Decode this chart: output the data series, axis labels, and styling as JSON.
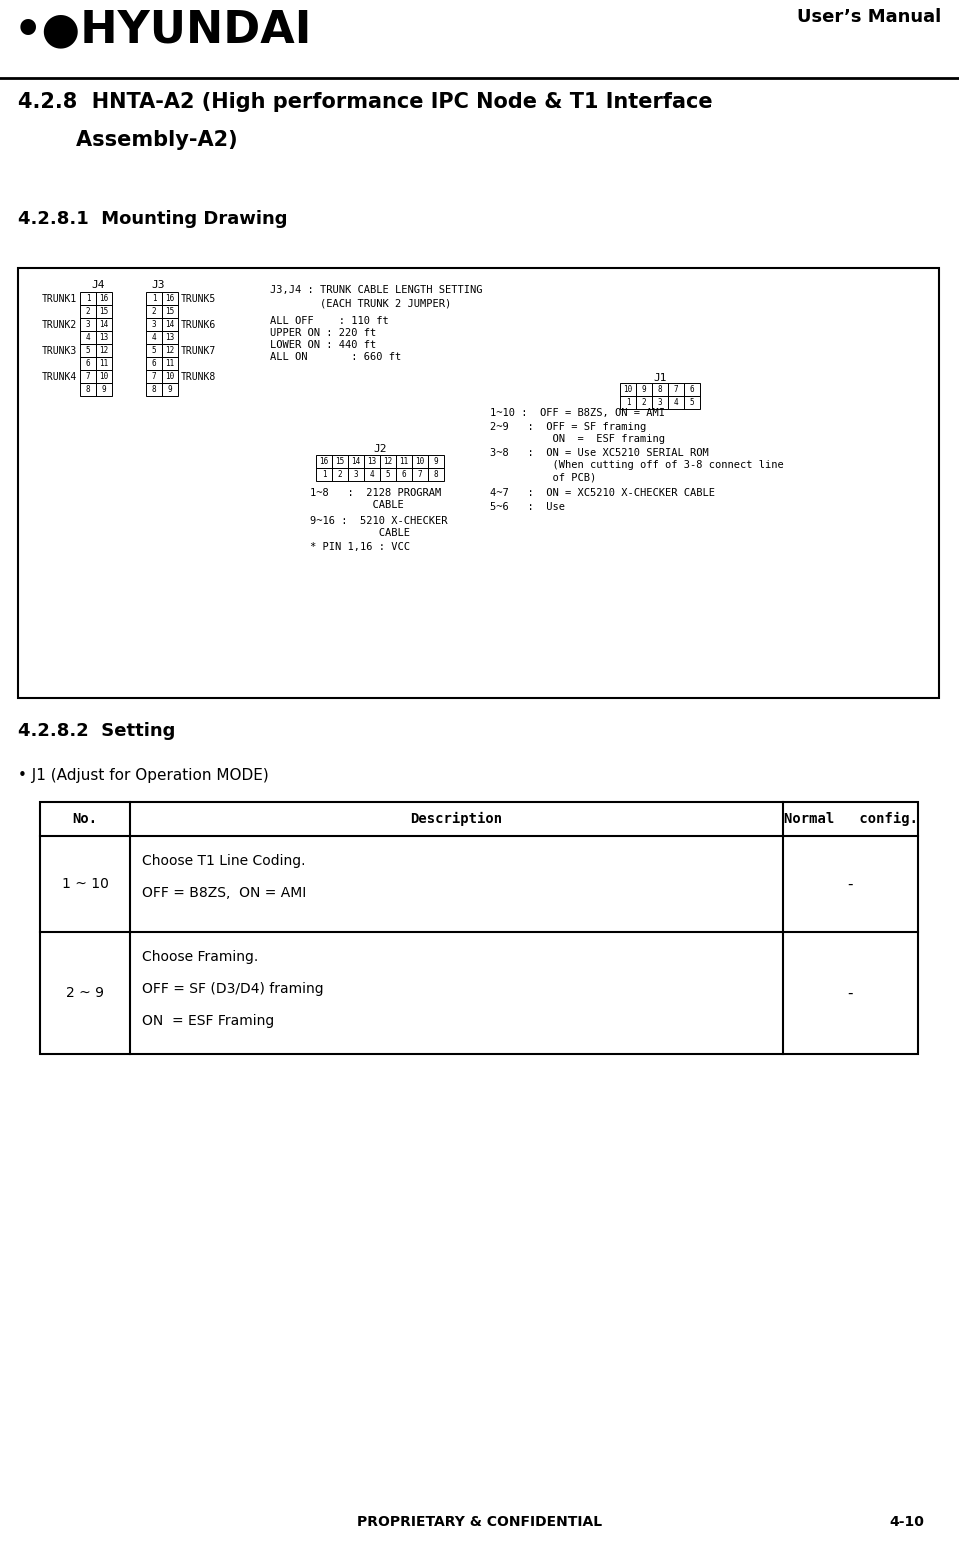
{
  "title_line1": "4.2.8  HNTA-A2 (High performance IPC Node & T1 Interface",
  "title_line2": "        Assembly-A2)",
  "subtitle1": "4.2.8.1  Mounting Drawing",
  "subtitle2": "4.2.8.2  Setting",
  "users_manual": "User’s Manual",
  "proprietary": "PROPRIETARY & CONFIDENTIAL",
  "page_num": "4-10",
  "j1_label": "J1",
  "j2_label": "J2",
  "j3_label": "J3",
  "j4_label": "J4",
  "j3j4_title1": "J3,J4 : TRUNK CABLE LENGTH SETTING",
  "j3j4_title2": "        (EACH TRUNK 2 JUMPER)",
  "j3j4_s1": "ALL OFF    : 110 ft",
  "j3j4_s2": "UPPER ON : 220 ft",
  "j3j4_s3": "LOWER ON : 440 ft",
  "j3j4_s4": "ALL ON       : 660 ft",
  "j2_desc1": "1~8   :  2128 PROGRAM",
  "j2_desc1b": "          CABLE",
  "j2_desc2": "9~16 :  5210 X-CHECKER",
  "j2_desc2b": "           CABLE",
  "j2_desc3": "* PIN 1,16 : VCC",
  "j1_desc1": "1~10 :  OFF = B8ZS, ON = AMI",
  "j1_desc2a": "2~9   :  OFF = SF framing",
  "j1_desc2b": "          ON  =  ESF framing",
  "j1_desc3a": "3~8   :  ON = Use XC5210 SERIAL ROM",
  "j1_desc3b": "          (When cutting off of 3-8 connect line",
  "j1_desc3c": "          of PCB)",
  "j1_desc4": "4~7   :  ON = XC5210 X-CHECKER CABLE",
  "j1_desc5": "5~6   :  Use",
  "trunk_labels_left": [
    "TRUNK1",
    "TRUNK2",
    "TRUNK3",
    "TRUNK4"
  ],
  "trunk_labels_right": [
    "TRUNK5",
    "TRUNK6",
    "TRUNK7",
    "TRUNK8"
  ],
  "bullet_j1": "• J1 (Adjust for Operation MODE)",
  "th0": "No.",
  "th1": "Description",
  "th2": "Normal   config.",
  "r1_no": "1 ~ 10",
  "r1_d1": "Choose T1 Line Coding.",
  "r1_d2": "OFF = B8ZS,  ON = AMI",
  "r1_n": "-",
  "r2_no": "2 ~ 9",
  "r2_d1": "Choose Framing.",
  "r2_d2": "OFF = SF (D3/D4) framing",
  "r2_d3": "ON  = ESF Framing",
  "r2_n": "-",
  "bg_color": "#ffffff"
}
